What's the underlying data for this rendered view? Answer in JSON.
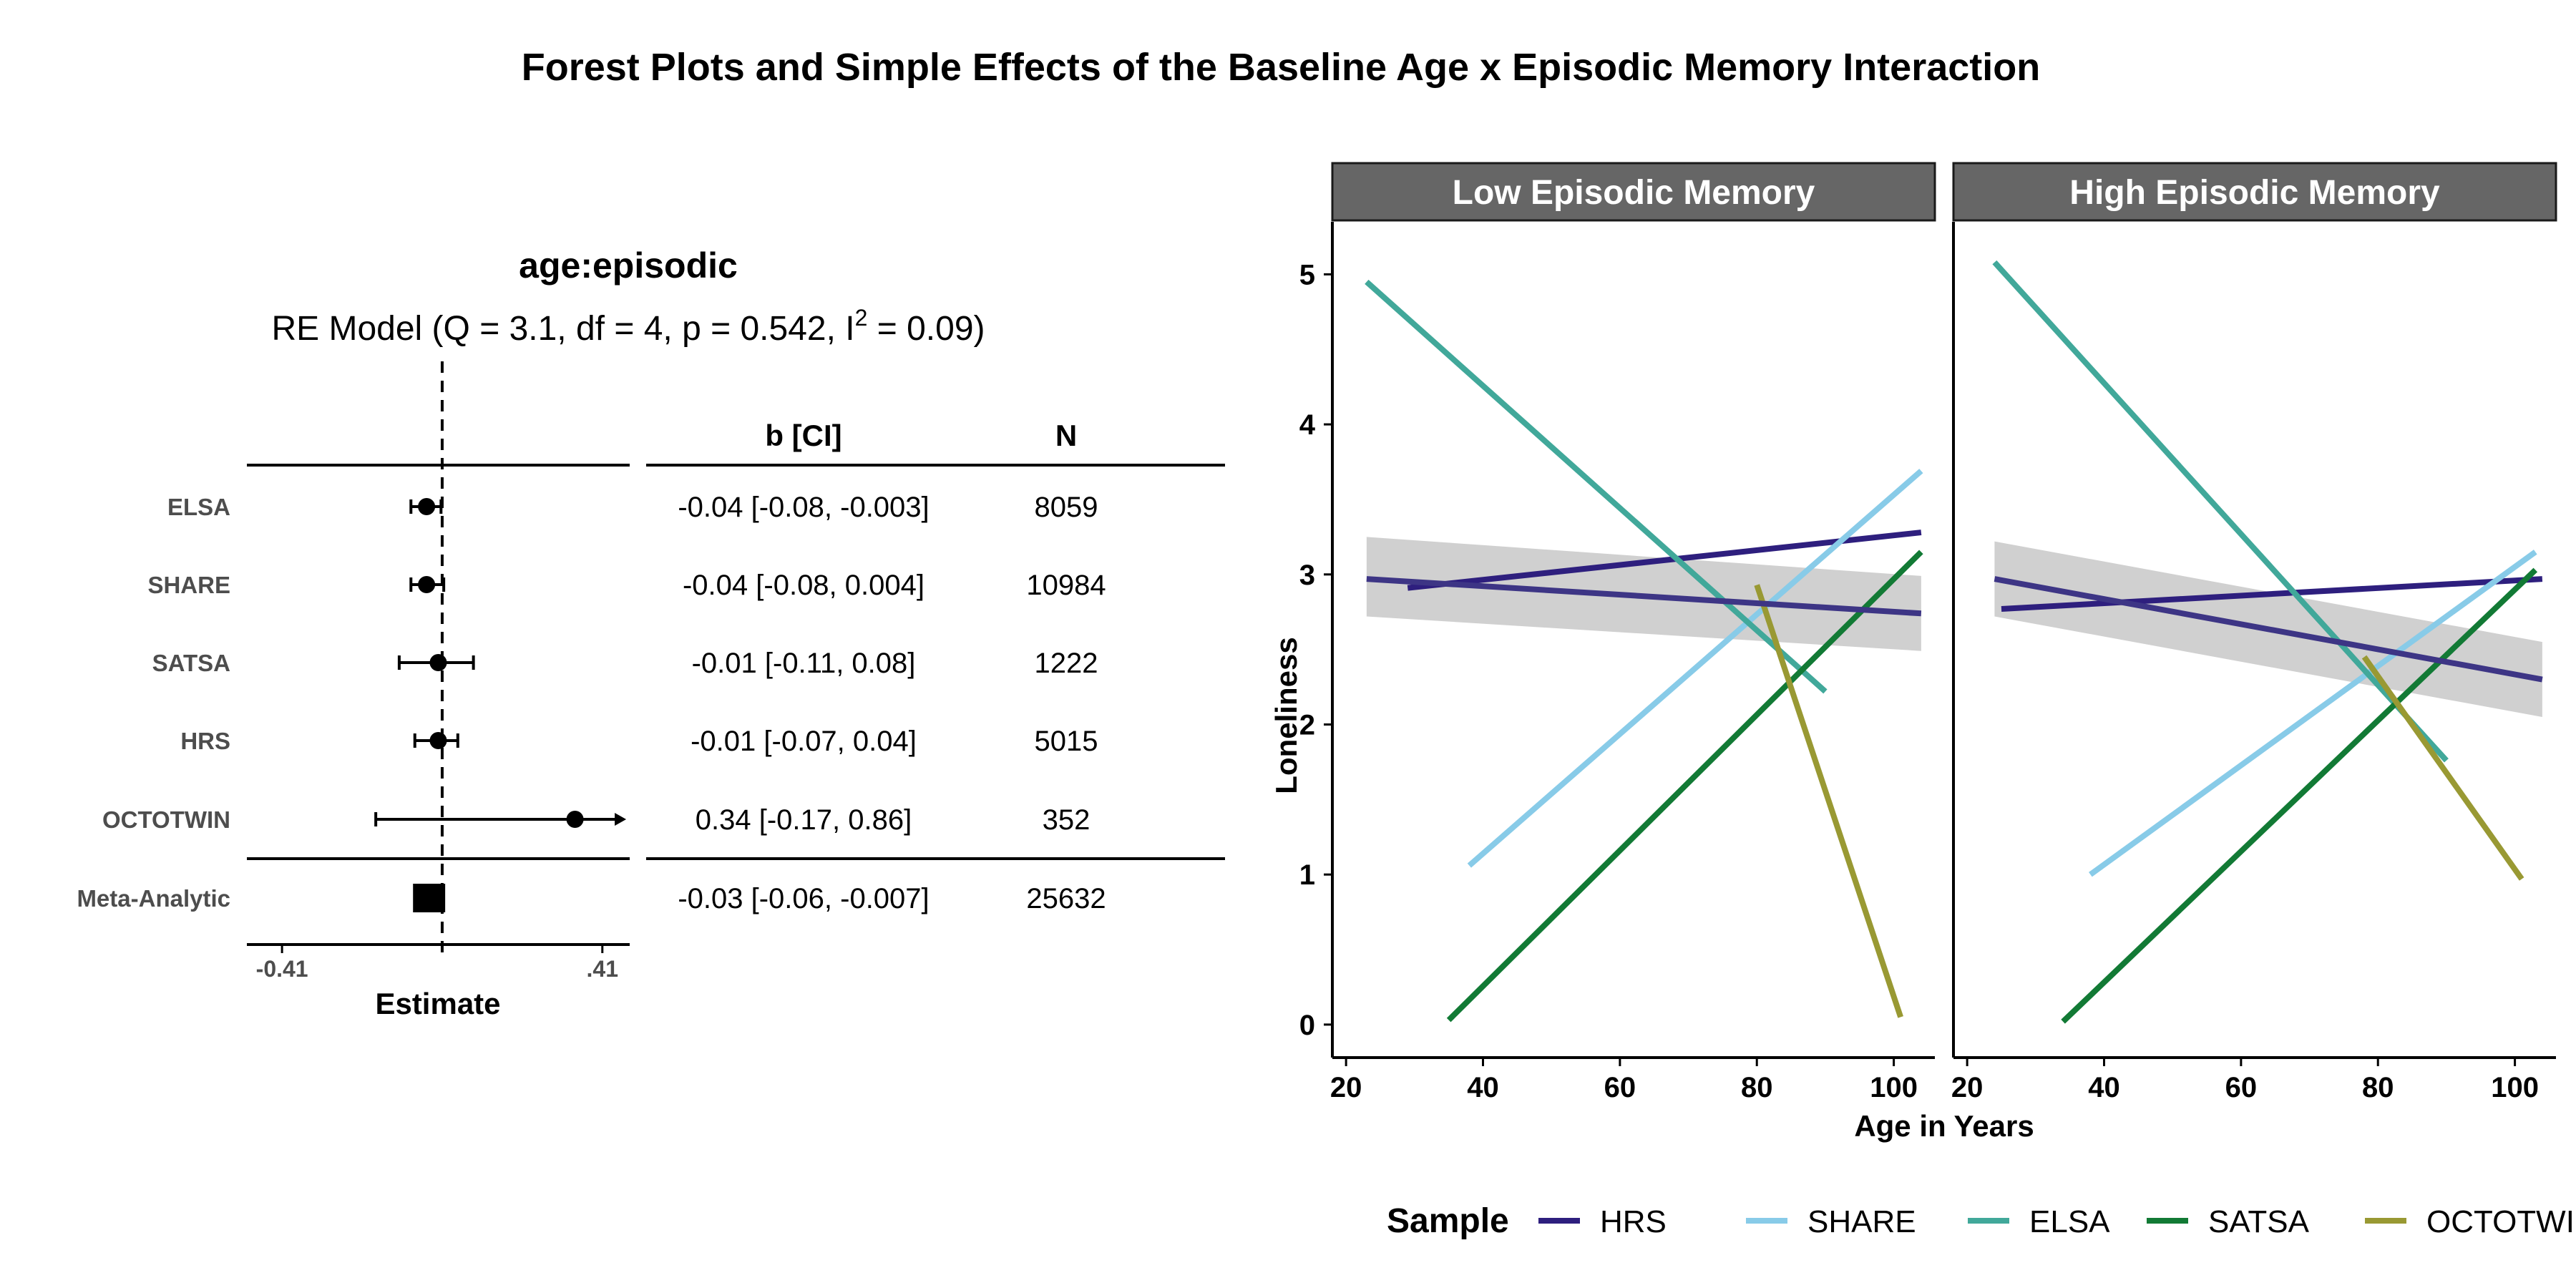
{
  "title": "Forest Plots and Simple Effects of the Baseline Age x Episodic Memory Interaction",
  "chart_data": [
    {
      "type": "forest",
      "title": "age:episodic",
      "model": {
        "prefix": "RE Model (Q = 3.1, df = 4, p = 0.542, I",
        "sup": "2",
        "suffix": " = 0.09)"
      },
      "xlabel": "Estimate",
      "xticks": [
        "-0.41",
        ".41"
      ],
      "xtick_values": [
        -0.41,
        0.41
      ],
      "xlim": [
        -0.5,
        0.48
      ],
      "reference_line": 0,
      "columns": [
        "b [CI]",
        "N"
      ],
      "studies": [
        {
          "name": "ELSA",
          "estimate": -0.04,
          "lower": -0.08,
          "upper": -0.003,
          "ci_text": "-0.04 [-0.08, -0.003]",
          "n": "8059"
        },
        {
          "name": "SHARE",
          "estimate": -0.04,
          "lower": -0.08,
          "upper": 0.004,
          "ci_text": "-0.04 [-0.08, 0.004]",
          "n": "10984"
        },
        {
          "name": "SATSA",
          "estimate": -0.01,
          "lower": -0.11,
          "upper": 0.08,
          "ci_text": "-0.01 [-0.11, 0.08]",
          "n": "1222"
        },
        {
          "name": "HRS",
          "estimate": -0.01,
          "lower": -0.07,
          "upper": 0.04,
          "ci_text": "-0.01 [-0.07, 0.04]",
          "n": "5015"
        },
        {
          "name": "OCTOTWIN",
          "estimate": 0.34,
          "lower": -0.17,
          "upper": 0.86,
          "ci_text": "0.34 [-0.17, 0.86]",
          "n": "352"
        }
      ],
      "meta": {
        "name": "Meta-Analytic",
        "estimate": -0.03,
        "lower": -0.06,
        "upper": -0.007,
        "ci_text": "-0.03 [-0.06, -0.007]",
        "n": "25632"
      }
    },
    {
      "type": "line",
      "xlabel": "Age in Years",
      "ylabel": "Loneliness",
      "xlim": [
        18,
        106
      ],
      "ylim": [
        -0.22,
        5.35
      ],
      "xticks": [
        20,
        40,
        60,
        80,
        100
      ],
      "yticks": [
        0,
        1,
        2,
        3,
        4,
        5
      ],
      "legend_title": "Sample",
      "legend_position": "bottom",
      "series": [
        {
          "name": "HRS",
          "color": "#2e1f7e"
        },
        {
          "name": "SHARE",
          "color": "#88cbe8"
        },
        {
          "name": "ELSA",
          "color": "#41a89a"
        },
        {
          "name": "SATSA",
          "color": "#127a35"
        },
        {
          "name": "OCTOTWIN",
          "color": "#999933"
        }
      ],
      "panels": [
        {
          "strip": "Low Episodic Memory",
          "lines": [
            {
              "series": "HRS",
              "x": [
                29,
                104
              ],
              "y": [
                2.91,
                3.28
              ]
            },
            {
              "series": "SHARE",
              "x": [
                38,
                104
              ],
              "y": [
                1.06,
                3.69
              ]
            },
            {
              "series": "ELSA",
              "x": [
                23,
                90
              ],
              "y": [
                4.95,
                2.22
              ]
            },
            {
              "series": "SATSA",
              "x": [
                35,
                104
              ],
              "y": [
                0.03,
                3.15
              ]
            },
            {
              "series": "OCTOTWIN",
              "x": [
                80,
                101
              ],
              "y": [
                2.93,
                0.05
              ]
            }
          ],
          "meta_line": {
            "x": [
              23,
              104
            ],
            "y": [
              2.97,
              2.74
            ],
            "band_lower": [
              2.72,
              2.49
            ],
            "band_upper": [
              3.25,
              2.99
            ]
          }
        },
        {
          "strip": "High Episodic Memory",
          "lines": [
            {
              "series": "HRS",
              "x": [
                25,
                104
              ],
              "y": [
                2.77,
                2.97
              ]
            },
            {
              "series": "SHARE",
              "x": [
                38,
                103
              ],
              "y": [
                1.0,
                3.15
              ]
            },
            {
              "series": "ELSA",
              "x": [
                24,
                90
              ],
              "y": [
                5.08,
                1.76
              ]
            },
            {
              "series": "SATSA",
              "x": [
                34,
                103
              ],
              "y": [
                0.02,
                3.03
              ]
            },
            {
              "series": "OCTOTWIN",
              "x": [
                78,
                101
              ],
              "y": [
                2.45,
                0.97
              ]
            }
          ],
          "meta_line": {
            "x": [
              24,
              104
            ],
            "y": [
              2.97,
              2.3
            ],
            "band_lower": [
              2.72,
              2.05
            ],
            "band_upper": [
              3.22,
              2.55
            ]
          }
        }
      ],
      "meta_color": "#3d3585",
      "band_color": "#c8c8c8"
    }
  ]
}
